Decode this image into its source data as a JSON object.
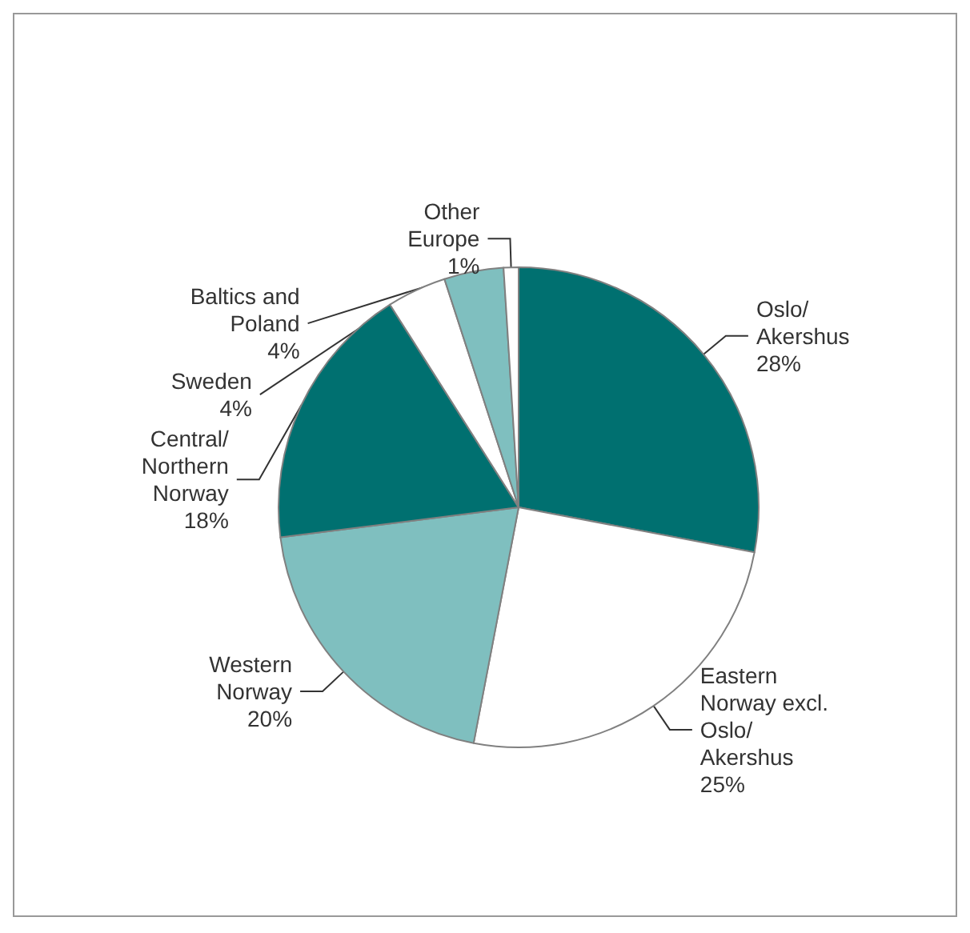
{
  "chart_data": {
    "type": "pie",
    "categories": [
      "Oslo/\nAkershus",
      "Eastern\nNorway excl.\nOslo/\nAkershus",
      "Western\nNorway",
      "Central/\nNorthern\nNorway",
      "Sweden",
      "Baltics and\nPoland",
      "Other\nEurope"
    ],
    "values": [
      28,
      25,
      20,
      18,
      4,
      4,
      1
    ],
    "value_labels": [
      "28%",
      "25%",
      "20%",
      "18%",
      "4%",
      "4%",
      "1%"
    ],
    "colors": [
      "#007070",
      "#ffffff",
      "#7fbfbf",
      "#007070",
      "#ffffff",
      "#7fbfbf",
      "#ffffff"
    ]
  }
}
